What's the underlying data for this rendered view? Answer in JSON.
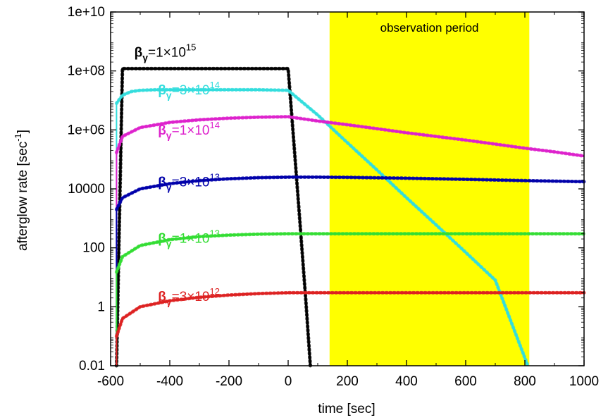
{
  "chart_data": {
    "type": "line",
    "title": "",
    "xlabel": "time [sec]",
    "ylabel": "afterglow rate [sec",
    "ylabel_sup": "-1",
    "ylabel_end": "]",
    "xlim": [
      -600,
      1000
    ],
    "ylim": [
      0.01,
      10000000000
    ],
    "yscale": "log",
    "grid": false,
    "x_ticks": [
      -600,
      -400,
      -200,
      0,
      200,
      400,
      600,
      800,
      1000
    ],
    "x_tick_labels": [
      "-600",
      "-400",
      "-200",
      "0",
      "200",
      "400",
      "600",
      "800",
      "1000"
    ],
    "y_ticks": [
      0.01,
      1,
      100,
      10000,
      1000000,
      100000000,
      10000000000
    ],
    "y_tick_labels": [
      "0.01",
      "1",
      "100",
      "10000",
      "1e+06",
      "1e+08",
      "1e+10"
    ],
    "observation_period": {
      "label": "observation period",
      "x_start": 140,
      "x_end": 815,
      "color": "#ffff00"
    },
    "series": [
      {
        "name_prefix": "β",
        "name_sub": "γ",
        "name_mid": "=1×10",
        "name_sup": "15",
        "color": "#000000",
        "x": [
          -580,
          -560,
          -400,
          -200,
          0,
          20,
          40,
          60,
          75
        ],
        "y": [
          0.01,
          120000000,
          120000000,
          120000000,
          120000000,
          300000,
          700,
          1.5,
          0.01
        ]
      },
      {
        "name_prefix": "β",
        "name_sub": "γ",
        "name_mid": "=3×10",
        "name_sup": "14",
        "color": "#33dddd",
        "x": [
          -580,
          -560,
          -530,
          -500,
          -450,
          -400,
          -300,
          -200,
          -100,
          0,
          100,
          200,
          300,
          400,
          500,
          600,
          700,
          810
        ],
        "y": [
          8000000,
          15000000,
          20000000,
          22000000,
          23000000,
          23000000,
          23000000,
          23000000,
          23000000,
          22000000,
          3200000,
          370000,
          44000,
          5000,
          600,
          70,
          8,
          0.01
        ]
      },
      {
        "name_prefix": "β",
        "name_sub": "γ",
        "name_mid": "=1×10",
        "name_sup": "14",
        "color": "#dd22cc",
        "x": [
          -580,
          -560,
          -500,
          -400,
          -300,
          -200,
          -100,
          0,
          100,
          200,
          300,
          400,
          500,
          600,
          700,
          800,
          900,
          1000
        ],
        "y": [
          170000,
          600000,
          1200000,
          1800000,
          2200000,
          2500000,
          2700000,
          2800000,
          2000000,
          1500000,
          1100000,
          800000,
          600000,
          450000,
          330000,
          240000,
          180000,
          130000
        ]
      },
      {
        "name_prefix": "β",
        "name_sub": "γ",
        "name_mid": "=3×10",
        "name_sup": "13",
        "color": "#0000aa",
        "x": [
          -580,
          -560,
          -500,
          -400,
          -300,
          -200,
          -100,
          0,
          100,
          200,
          400,
          600,
          800,
          1000
        ],
        "y": [
          2000,
          5000,
          10000,
          15000,
          19000,
          22000,
          24000,
          25000,
          25000,
          24500,
          23000,
          21000,
          19000,
          17500
        ]
      },
      {
        "name_prefix": "β",
        "name_sub": "γ",
        "name_mid": "=1×10",
        "name_sup": "13",
        "color": "#33dd33",
        "x": [
          -580,
          -560,
          -500,
          -400,
          -300,
          -200,
          -100,
          0,
          100,
          200,
          400,
          600,
          800,
          1000
        ],
        "y": [
          15,
          50,
          120,
          190,
          240,
          270,
          290,
          300,
          300,
          300,
          300,
          300,
          300,
          300
        ]
      },
      {
        "name_prefix": "β",
        "name_sub": "γ",
        "name_mid": "=3×10",
        "name_sup": "12",
        "color": "#dd2222",
        "x": [
          -580,
          -560,
          -500,
          -400,
          -300,
          -200,
          -100,
          0,
          100,
          200,
          400,
          600,
          800,
          1000
        ],
        "y": [
          0.1,
          0.4,
          1,
          1.6,
          2.1,
          2.5,
          2.8,
          3,
          3,
          3,
          3,
          3,
          3,
          3
        ]
      }
    ]
  }
}
